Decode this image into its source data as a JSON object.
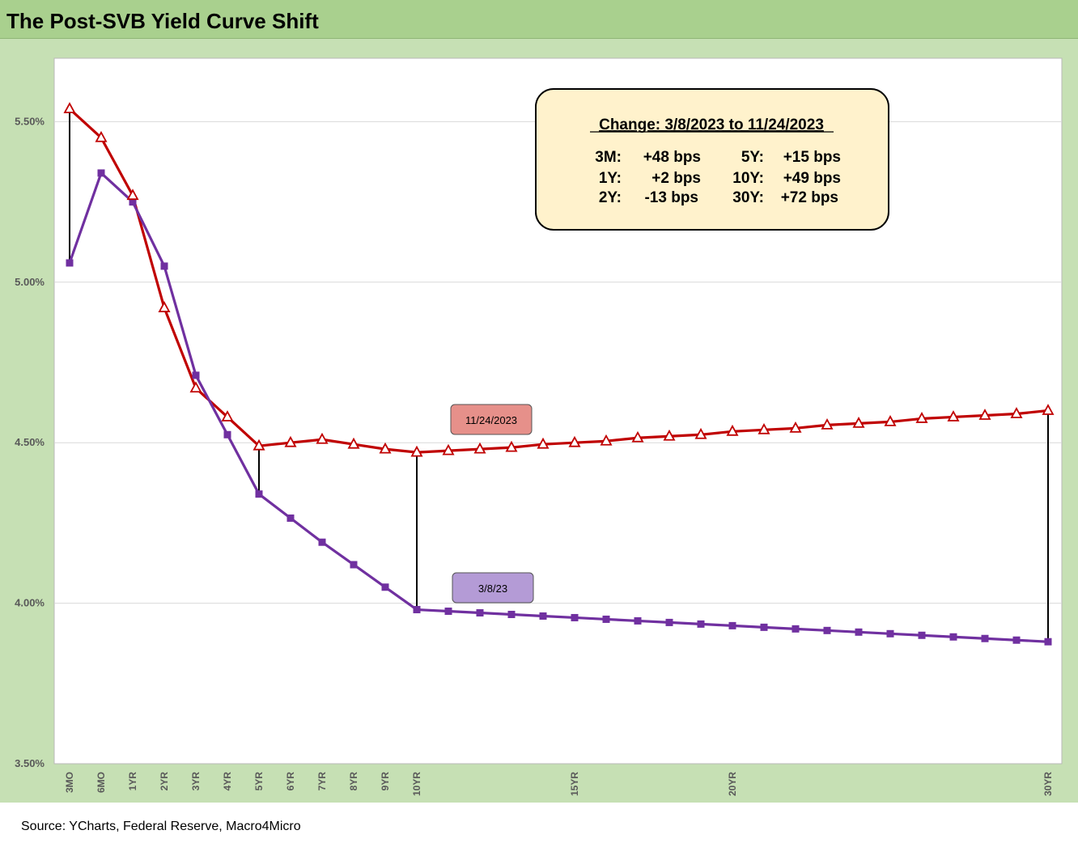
{
  "page": {
    "title": "The Post-SVB Yield Curve Shift",
    "source": "Source: YCharts, Federal Reserve, Macro4Micro"
  },
  "colors": {
    "header_bg": "#a9d08e",
    "chart_bg": "#c6e0b4",
    "plot_bg": "#ffffff",
    "series_nov": "#c00000",
    "series_mar": "#7030a0",
    "label_nov_bg": "#e6908a",
    "label_mar_bg": "#b49bd6",
    "box_bg": "#fff2cc"
  },
  "chart_data": {
    "type": "line",
    "title": "The Post-SVB Yield Curve Shift",
    "ylim": [
      3.5,
      5.7
    ],
    "yticks": [
      "3.50%",
      "4.00%",
      "4.50%",
      "5.00%",
      "5.50%"
    ],
    "ytick_values": [
      3.5,
      4.0,
      4.5,
      5.0,
      5.5
    ],
    "x": [
      0.25,
      0.5,
      1,
      2,
      3,
      4,
      5,
      6,
      7,
      8,
      9,
      10,
      11,
      12,
      13,
      14,
      15,
      16,
      17,
      18,
      19,
      20,
      21,
      22,
      23,
      24,
      25,
      26,
      27,
      28,
      29,
      30
    ],
    "xtick_labels": [
      {
        "x": 0.25,
        "label": "3MO"
      },
      {
        "x": 0.5,
        "label": "6MO"
      },
      {
        "x": 1,
        "label": "1YR"
      },
      {
        "x": 2,
        "label": "2YR"
      },
      {
        "x": 3,
        "label": "3YR"
      },
      {
        "x": 4,
        "label": "4YR"
      },
      {
        "x": 5,
        "label": "5YR"
      },
      {
        "x": 6,
        "label": "6YR"
      },
      {
        "x": 7,
        "label": "7YR"
      },
      {
        "x": 8,
        "label": "8YR"
      },
      {
        "x": 9,
        "label": "9YR"
      },
      {
        "x": 10,
        "label": "10YR"
      },
      {
        "x": 15,
        "label": "15YR"
      },
      {
        "x": 20,
        "label": "20YR"
      },
      {
        "x": 30,
        "label": "30YR"
      }
    ],
    "series": [
      {
        "name": "11/24/2023",
        "marker": "triangle",
        "values": [
          5.54,
          5.45,
          5.27,
          4.92,
          4.67,
          4.58,
          4.49,
          4.5,
          4.51,
          4.495,
          4.48,
          4.47,
          4.475,
          4.48,
          4.485,
          4.495,
          4.5,
          4.505,
          4.515,
          4.52,
          4.525,
          4.535,
          4.54,
          4.545,
          4.555,
          4.56,
          4.565,
          4.575,
          4.58,
          4.585,
          4.59,
          4.6
        ]
      },
      {
        "name": "3/8/23",
        "marker": "square",
        "values": [
          5.06,
          5.34,
          5.25,
          5.05,
          4.71,
          4.525,
          4.34,
          4.265,
          4.19,
          4.12,
          4.05,
          3.98,
          3.975,
          3.97,
          3.965,
          3.96,
          3.955,
          3.95,
          3.945,
          3.94,
          3.935,
          3.93,
          3.925,
          3.92,
          3.915,
          3.91,
          3.905,
          3.9,
          3.895,
          3.89,
          3.885,
          3.88
        ]
      }
    ],
    "change_lines_at": [
      0.25,
      5,
      10,
      30
    ],
    "annotation": {
      "heading": "Change: 3/8/2023 to 11/24/2023",
      "rows": [
        [
          "3M:",
          "+48 bps",
          "5Y:",
          "+15 bps"
        ],
        [
          "1Y:",
          "+2 bps",
          "10Y:",
          "+49 bps"
        ],
        [
          "2Y:",
          "-13 bps",
          "30Y:",
          "+72 bps"
        ]
      ]
    }
  }
}
